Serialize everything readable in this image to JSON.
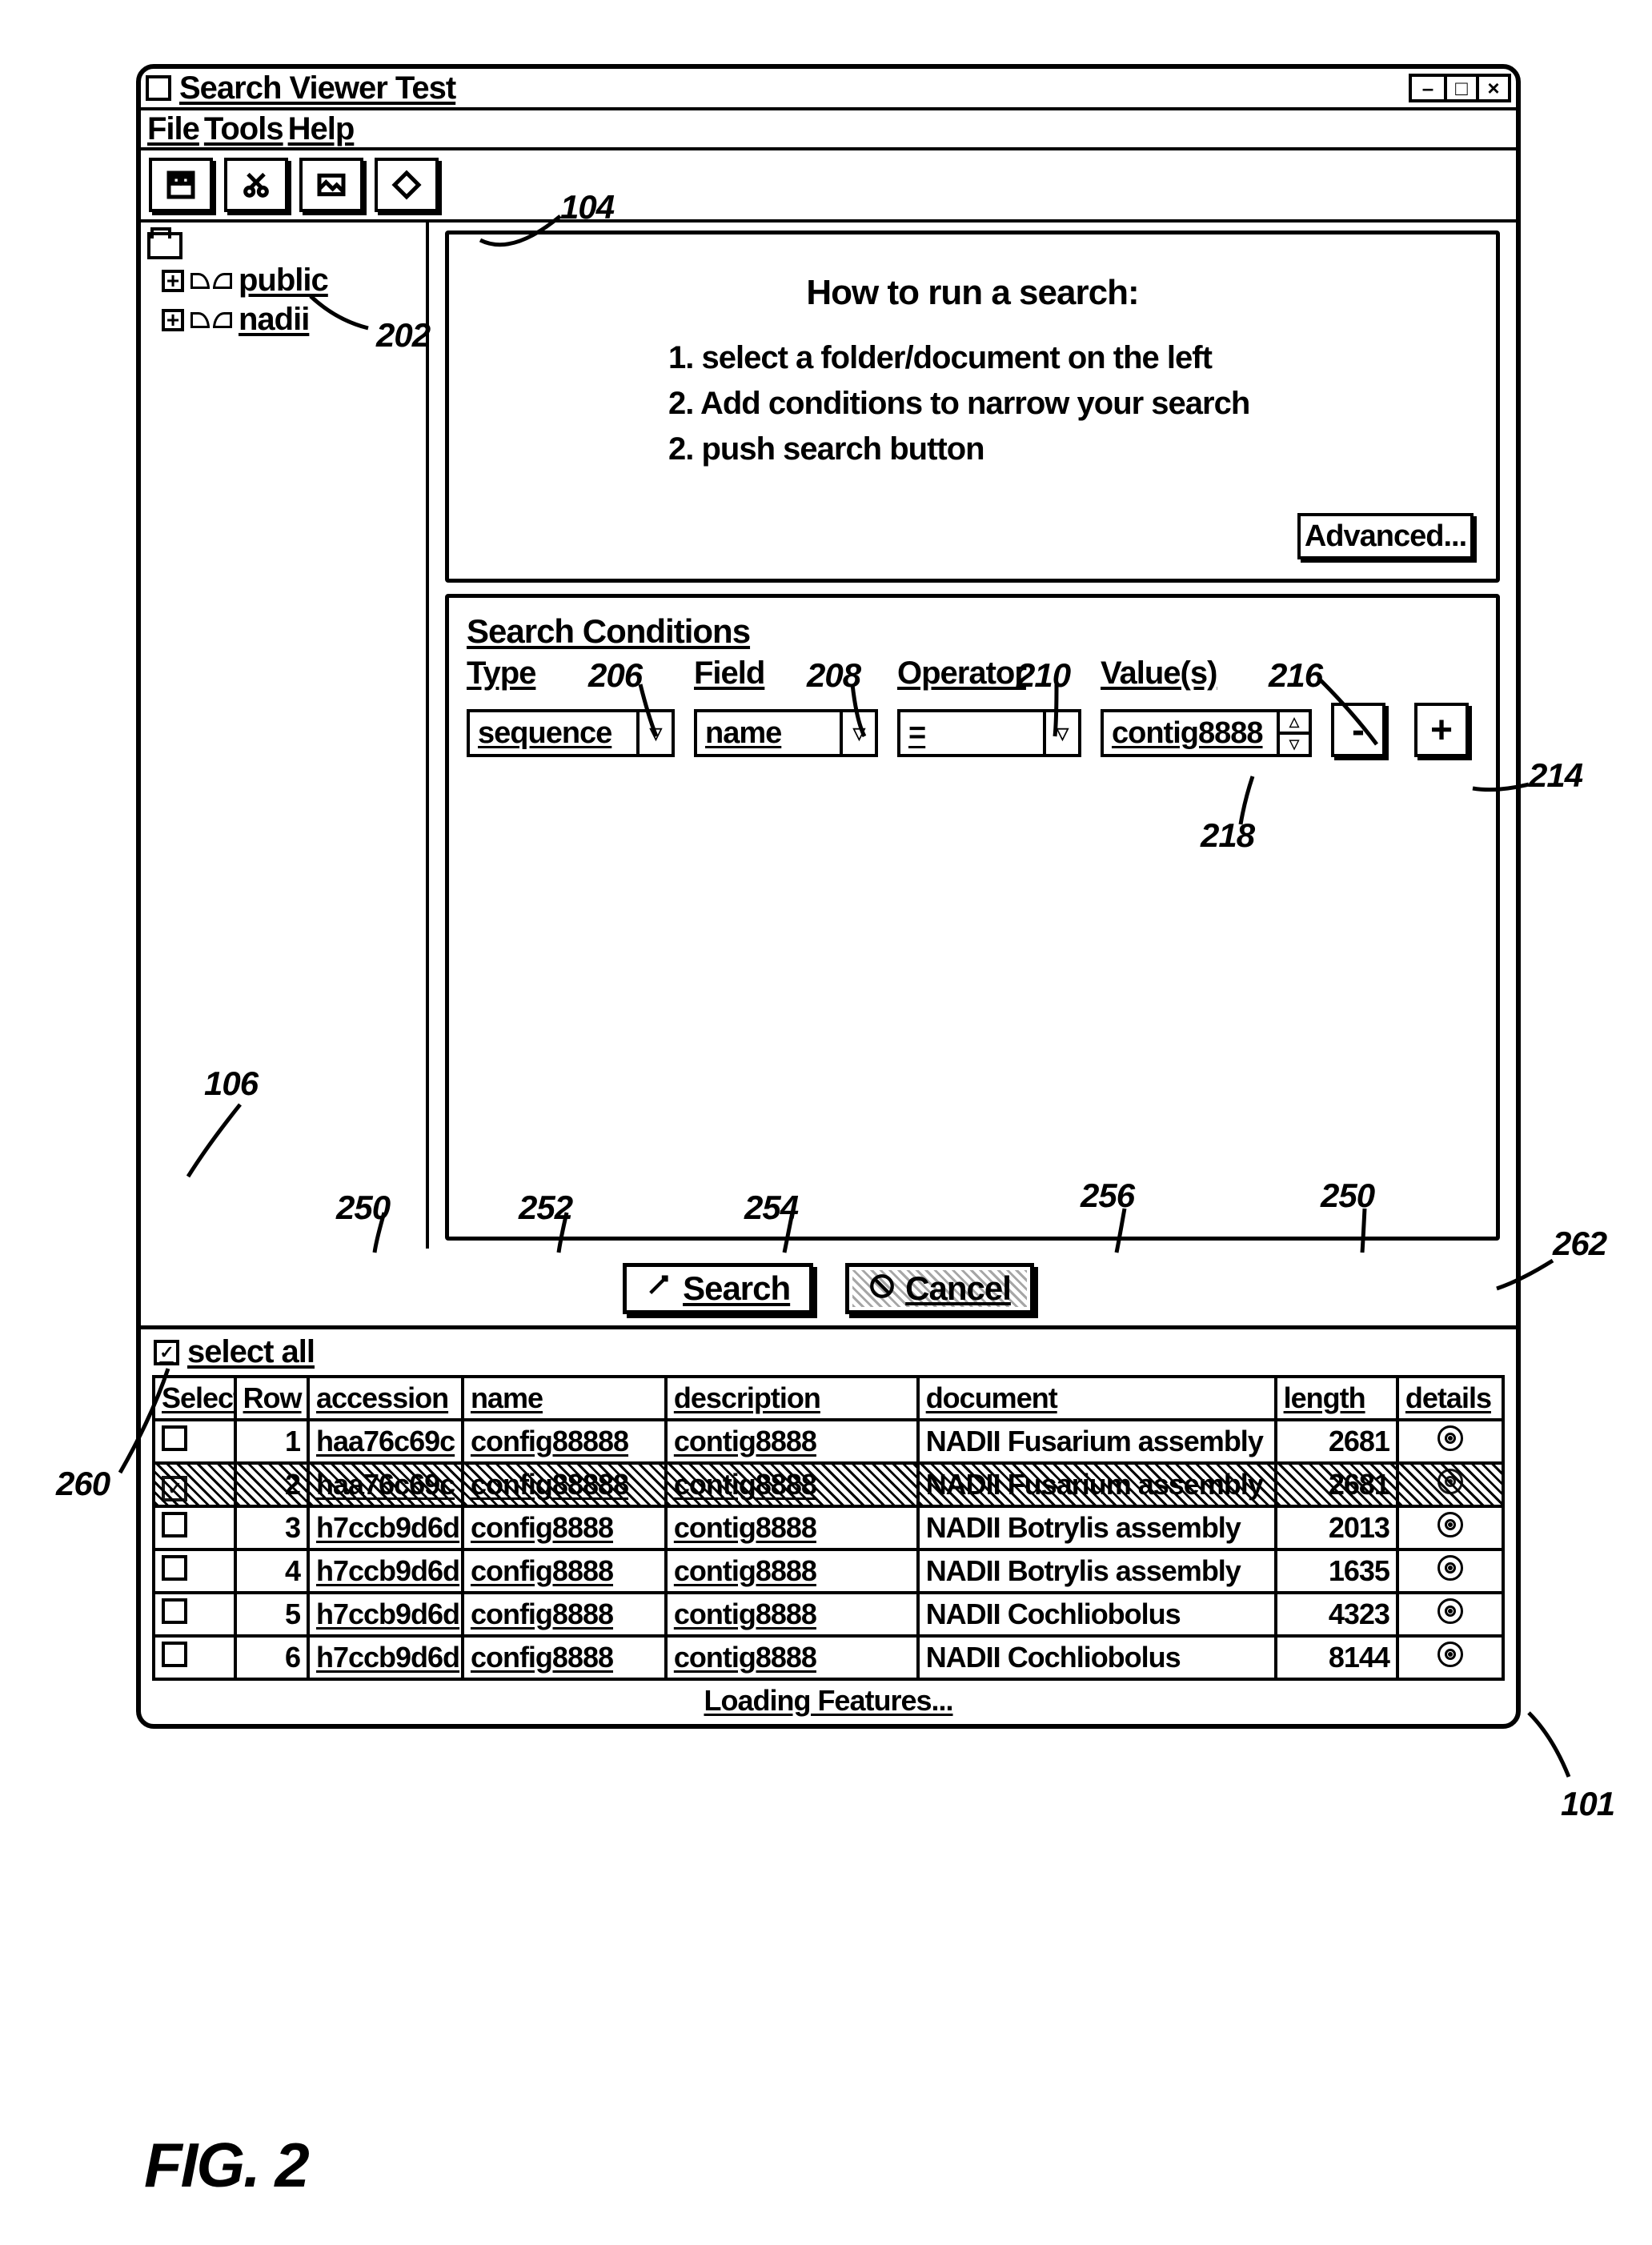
{
  "window": {
    "title": "Search Viewer Test",
    "menus": {
      "file": "File",
      "tools": "Tools",
      "help": "Help"
    }
  },
  "tree": {
    "items": [
      "public",
      "nadii"
    ]
  },
  "howto": {
    "title": "How to run a search:",
    "line1": "1. select a folder/document on the left",
    "line2": "2. Add conditions to narrow your search",
    "line3": "2. push search button",
    "advanced": "Advanced..."
  },
  "conditions": {
    "title": "Search Conditions",
    "headers": {
      "type": "Type",
      "field": "Field",
      "operator": "Operator",
      "values": "Value(s)"
    },
    "row": {
      "type": "sequence",
      "field": "name",
      "operator": "=",
      "value": "contig8888"
    }
  },
  "actions": {
    "search": "Search",
    "cancel": "Cancel"
  },
  "results": {
    "select_all": "select all",
    "columns": {
      "select": "Select",
      "row": "Row",
      "accession": "accession",
      "name": "name",
      "description": "description",
      "document": "document",
      "length": "length",
      "details": "details"
    },
    "rows": [
      {
        "row": "1",
        "accession": "haa76c69c",
        "name": "config88888",
        "description": "contig8888",
        "document": "NADII Fusarium assembly",
        "length": "2681"
      },
      {
        "row": "2",
        "accession": "haa76c69c",
        "name": "config88888",
        "description": "contig8888",
        "document": "NADII Fusarium assembly",
        "length": "2681",
        "selected": true
      },
      {
        "row": "3",
        "accession": "h7ccb9d6d",
        "name": "config8888",
        "description": "contig8888",
        "document": "NADII Botrylis assembly",
        "length": "2013"
      },
      {
        "row": "4",
        "accession": "h7ccb9d6d",
        "name": "config8888",
        "description": "contig8888",
        "document": "NADII Botrylis assembly",
        "length": "1635"
      },
      {
        "row": "5",
        "accession": "h7ccb9d6d",
        "name": "config8888",
        "description": "contig8888",
        "document": "NADII Cochliobolus",
        "length": "4323"
      },
      {
        "row": "6",
        "accession": "h7ccb9d6d",
        "name": "config8888",
        "description": "contig8888",
        "document": "NADII Cochliobolus",
        "length": "8144"
      }
    ],
    "status": "Loading Features..."
  },
  "callouts": {
    "c202": "202",
    "c104": "104",
    "c206": "206",
    "c208": "208",
    "c210": "210",
    "c216": "216",
    "c214": "214",
    "c218": "218",
    "c106": "106",
    "c260": "260",
    "c250a": "250",
    "c252": "252",
    "c254": "254",
    "c256": "256",
    "c250b": "250",
    "c262": "262",
    "c101": "101"
  },
  "fig": "FIG. 2"
}
